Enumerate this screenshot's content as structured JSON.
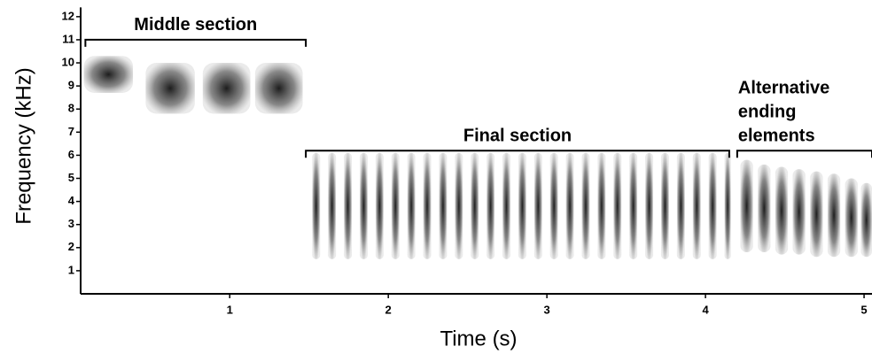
{
  "chart_data": {
    "type": "spectrogram",
    "x_label": "Time (s)",
    "y_label": "Frequency (kHz)",
    "xlim": [
      0.06,
      5.05
    ],
    "ylim": [
      0,
      12.4
    ],
    "xticks": [
      1,
      2,
      3,
      4,
      5
    ],
    "yticks": [
      1,
      2,
      3,
      4,
      5,
      6,
      7,
      8,
      9,
      10,
      11,
      12
    ],
    "color": "#2a2a2a",
    "annotations": [
      {
        "text": [
          "Middle section"
        ],
        "x0": 0.09,
        "x1": 1.48,
        "y": 11.0
      },
      {
        "text": [
          "Final section"
        ],
        "x0": 1.48,
        "x1": 4.15,
        "y": 6.2
      },
      {
        "text": [
          "Alternative",
          "ending",
          "elements"
        ],
        "x0": 4.2,
        "x1": 5.05,
        "y": 6.2
      }
    ],
    "elements": [
      [
        0.08,
        0.39,
        8.7,
        10.3
      ],
      [
        0.47,
        0.78,
        7.8,
        10.0
      ],
      [
        0.83,
        1.13,
        7.8,
        10.0
      ],
      [
        1.16,
        1.46,
        7.8,
        10.0
      ],
      [
        1.52,
        1.57,
        1.5,
        6.1
      ],
      [
        1.62,
        1.67,
        1.5,
        6.1
      ],
      [
        1.72,
        1.77,
        1.5,
        6.1
      ],
      [
        1.82,
        1.87,
        1.5,
        6.1
      ],
      [
        1.92,
        1.97,
        1.5,
        6.1
      ],
      [
        2.02,
        2.07,
        1.5,
        6.1
      ],
      [
        2.12,
        2.17,
        1.5,
        6.1
      ],
      [
        2.22,
        2.27,
        1.5,
        6.1
      ],
      [
        2.32,
        2.37,
        1.5,
        6.1
      ],
      [
        2.42,
        2.47,
        1.5,
        6.1
      ],
      [
        2.52,
        2.57,
        1.5,
        6.1
      ],
      [
        2.62,
        2.67,
        1.5,
        6.1
      ],
      [
        2.72,
        2.77,
        1.5,
        6.1
      ],
      [
        2.82,
        2.87,
        1.5,
        6.1
      ],
      [
        2.92,
        2.97,
        1.5,
        6.1
      ],
      [
        3.02,
        3.07,
        1.5,
        6.1
      ],
      [
        3.12,
        3.17,
        1.5,
        6.1
      ],
      [
        3.22,
        3.27,
        1.5,
        6.1
      ],
      [
        3.32,
        3.37,
        1.5,
        6.1
      ],
      [
        3.42,
        3.47,
        1.5,
        6.1
      ],
      [
        3.52,
        3.57,
        1.5,
        6.1
      ],
      [
        3.62,
        3.67,
        1.5,
        6.1
      ],
      [
        3.72,
        3.77,
        1.5,
        6.1
      ],
      [
        3.82,
        3.87,
        1.5,
        6.1
      ],
      [
        3.92,
        3.97,
        1.5,
        6.1
      ],
      [
        4.02,
        4.07,
        1.5,
        6.1
      ],
      [
        4.12,
        4.16,
        1.5,
        6.1
      ],
      [
        4.22,
        4.3,
        1.8,
        5.8
      ],
      [
        4.33,
        4.41,
        1.8,
        5.6
      ],
      [
        4.44,
        4.52,
        1.7,
        5.5
      ],
      [
        4.55,
        4.63,
        1.7,
        5.4
      ],
      [
        4.66,
        4.74,
        1.6,
        5.3
      ],
      [
        4.77,
        4.85,
        1.6,
        5.2
      ],
      [
        4.88,
        4.96,
        1.6,
        5.0
      ],
      [
        4.98,
        5.05,
        1.6,
        4.8
      ]
    ]
  }
}
